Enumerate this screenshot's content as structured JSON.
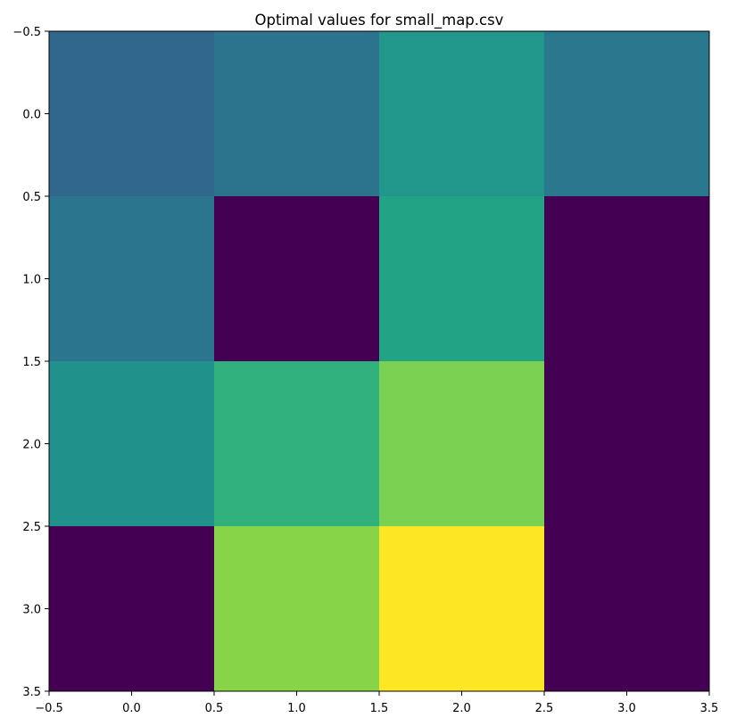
{
  "chart_data": {
    "type": "heatmap",
    "title": "Optimal values for small_map.csv",
    "xlabel": "",
    "ylabel": "",
    "xlim": [
      -0.5,
      3.5
    ],
    "ylim": [
      3.5,
      -0.5
    ],
    "x_ticks": [
      "−0.5",
      "0.0",
      "0.5",
      "1.0",
      "1.5",
      "2.0",
      "2.5",
      "3.0",
      "3.5"
    ],
    "y_ticks": [
      "−0.5",
      "0.0",
      "0.5",
      "1.0",
      "1.5",
      "2.0",
      "2.5",
      "3.0",
      "3.5"
    ],
    "colormap": "viridis",
    "grid": false,
    "values": [
      [
        0.33,
        0.38,
        0.52,
        0.4
      ],
      [
        0.39,
        0.0,
        0.58,
        0.0
      ],
      [
        0.5,
        0.64,
        0.8,
        0.0
      ],
      [
        0.0,
        0.82,
        1.0,
        0.0
      ]
    ]
  }
}
